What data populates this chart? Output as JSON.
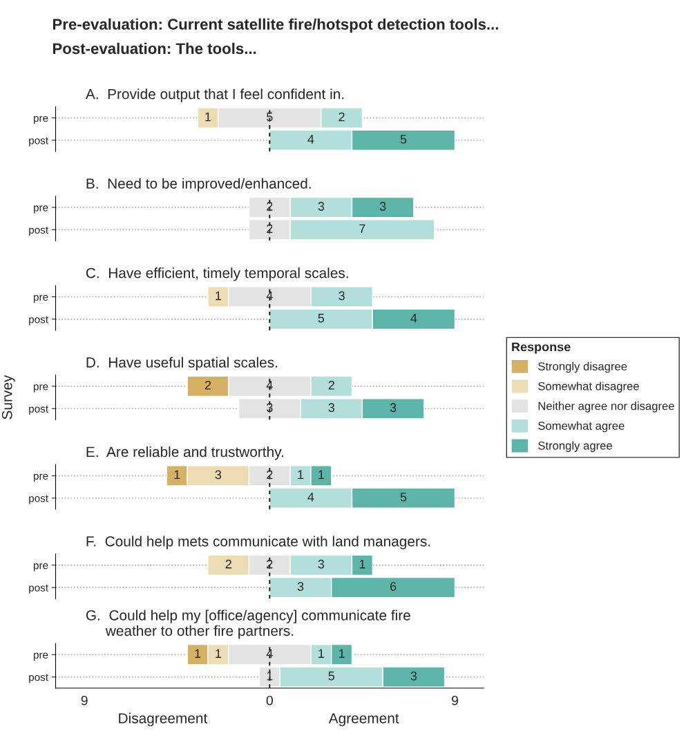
{
  "chart_data": [
    {
      "type": "bar",
      "orientation": "horizontal",
      "title": "Pre-evaluation: Current satellite fire/hotspot detection tools...\nPost-evaluation: The tools...",
      "subtitle": "A.  Provide output that I feel confident in.",
      "categories": [
        "pre",
        "post"
      ],
      "series": [
        {
          "color": "#ecdbb3",
          "values": [
            1,
            null
          ],
          "base": [
            -3.5,
            null
          ]
        },
        {
          "color": "#e3e3e3",
          "values": [
            5,
            null
          ],
          "base": [
            -2.5,
            null
          ]
        },
        {
          "color": "#b3dfdb",
          "values": [
            2,
            4
          ],
          "base": [
            2.5,
            0
          ]
        },
        {
          "color": "#5db5aa",
          "values": [
            null,
            5
          ],
          "base": [
            null,
            4
          ]
        }
      ],
      "xlim": [
        -10.4,
        10.4
      ],
      "tick_labels": "y",
      "grid": "y",
      "data_labels": true,
      "ref_lines": [
        {
          "axis": "x",
          "value": 0,
          "line_style": "dashed"
        }
      ]
    },
    {
      "type": "bar",
      "orientation": "horizontal",
      "subtitle": "B.  Need to be improved/enhanced.",
      "categories": [
        "pre",
        "post"
      ],
      "series": [
        {
          "color": "#e3e3e3",
          "values": [
            2,
            2
          ],
          "base": [
            -1,
            -1
          ]
        },
        {
          "color": "#b3dfdb",
          "values": [
            3,
            7
          ],
          "base": [
            1,
            1
          ]
        },
        {
          "color": "#5db5aa",
          "values": [
            3,
            null
          ],
          "base": [
            4,
            null
          ]
        }
      ],
      "xlim": [
        -10.4,
        10.4
      ],
      "tick_labels": "y",
      "grid": "y",
      "data_labels": true,
      "ref_lines": [
        {
          "axis": "x",
          "value": 0,
          "line_style": "dashed"
        }
      ]
    },
    {
      "type": "bar",
      "orientation": "horizontal",
      "subtitle": "C.  Have efficient, timely temporal scales.",
      "categories": [
        "pre",
        "post"
      ],
      "series": [
        {
          "color": "#ecdbb3",
          "values": [
            1,
            null
          ],
          "base": [
            -3,
            null
          ]
        },
        {
          "color": "#e3e3e3",
          "values": [
            4,
            null
          ],
          "base": [
            -2,
            null
          ]
        },
        {
          "color": "#b3dfdb",
          "values": [
            3,
            5
          ],
          "base": [
            2,
            0
          ]
        },
        {
          "color": "#5db5aa",
          "values": [
            null,
            4
          ],
          "base": [
            null,
            5
          ]
        }
      ],
      "xlim": [
        -10.4,
        10.4
      ],
      "tick_labels": "y",
      "grid": "y",
      "data_labels": true,
      "ref_lines": [
        {
          "axis": "x",
          "value": 0,
          "line_style": "dashed"
        }
      ]
    },
    {
      "type": "bar",
      "orientation": "horizontal",
      "subtitle": "D.  Have useful spatial scales.",
      "ylabel": "Survey",
      "legend_title": "Response",
      "categories": [
        "pre",
        "post"
      ],
      "series": [
        {
          "name": "Strongly disagree",
          "color": "#d6b163",
          "values": [
            2,
            null
          ],
          "base": [
            -4,
            null
          ]
        },
        {
          "name": "Somewhat disagree",
          "color": "#ecdbb3",
          "values": [
            null,
            null
          ],
          "base": [
            null,
            null
          ]
        },
        {
          "name": "Neither agree nor disagree",
          "color": "#e3e3e3",
          "values": [
            4,
            3
          ],
          "base": [
            -2,
            -1.5
          ]
        },
        {
          "name": "Somewhat agree",
          "color": "#b3dfdb",
          "values": [
            2,
            3
          ],
          "base": [
            2,
            1.5
          ]
        },
        {
          "name": "Strongly agree",
          "color": "#5db5aa",
          "values": [
            null,
            3
          ],
          "base": [
            null,
            4.5
          ]
        }
      ],
      "xlim": [
        -10.4,
        10.4
      ],
      "tick_labels": "y",
      "grid": "y",
      "data_labels": true,
      "legend": "right",
      "ref_lines": [
        {
          "axis": "x",
          "value": 0,
          "line_style": "dashed"
        }
      ]
    },
    {
      "type": "bar",
      "orientation": "horizontal",
      "subtitle": "E.  Are reliable and trustworthy.",
      "categories": [
        "pre",
        "post"
      ],
      "series": [
        {
          "color": "#d6b163",
          "values": [
            1,
            null
          ],
          "base": [
            -5,
            null
          ]
        },
        {
          "color": "#ecdbb3",
          "values": [
            3,
            null
          ],
          "base": [
            -4,
            null
          ]
        },
        {
          "color": "#e3e3e3",
          "values": [
            2,
            null
          ],
          "base": [
            -1,
            null
          ]
        },
        {
          "color": "#b3dfdb",
          "values": [
            1,
            4
          ],
          "base": [
            1,
            0
          ]
        },
        {
          "color": "#5db5aa",
          "values": [
            1,
            5
          ],
          "base": [
            2,
            4
          ]
        }
      ],
      "xlim": [
        -10.4,
        10.4
      ],
      "tick_labels": "y",
      "grid": "y",
      "data_labels": true,
      "ref_lines": [
        {
          "axis": "x",
          "value": 0,
          "line_style": "dashed"
        }
      ]
    },
    {
      "type": "bar",
      "orientation": "horizontal",
      "subtitle": "F.  Could help mets communicate with land managers.",
      "categories": [
        "pre",
        "post"
      ],
      "series": [
        {
          "color": "#ecdbb3",
          "values": [
            2,
            null
          ],
          "base": [
            -3,
            null
          ]
        },
        {
          "color": "#e3e3e3",
          "values": [
            2,
            null
          ],
          "base": [
            -1,
            null
          ]
        },
        {
          "color": "#b3dfdb",
          "values": [
            3,
            3
          ],
          "base": [
            1,
            0
          ]
        },
        {
          "color": "#5db5aa",
          "values": [
            1,
            6
          ],
          "base": [
            4,
            3
          ]
        }
      ],
      "xlim": [
        -10.4,
        10.4
      ],
      "tick_labels": "y",
      "grid": "y",
      "data_labels": true,
      "ref_lines": [
        {
          "axis": "x",
          "value": 0,
          "line_style": "dashed"
        }
      ]
    },
    {
      "type": "bar",
      "orientation": "horizontal",
      "subtitle": "G.  Could help my [office/agency] communicate fire\n     weather to other fire partners.",
      "categories": [
        "pre",
        "post"
      ],
      "series": [
        {
          "color": "#d6b163",
          "values": [
            1,
            null
          ],
          "base": [
            -4,
            null
          ]
        },
        {
          "color": "#ecdbb3",
          "values": [
            1,
            null
          ],
          "base": [
            -3,
            null
          ]
        },
        {
          "color": "#e3e3e3",
          "values": [
            4,
            1
          ],
          "base": [
            -2,
            -0.5
          ]
        },
        {
          "color": "#b3dfdb",
          "values": [
            1,
            5
          ],
          "base": [
            2,
            0.5
          ]
        },
        {
          "color": "#5db5aa",
          "values": [
            1,
            3
          ],
          "base": [
            3,
            5.5
          ]
        }
      ],
      "xlim": [
        -10.4,
        10.4
      ],
      "xticks": [
        {
          "value": -9,
          "label": "9"
        },
        0,
        9
      ],
      "annotations": [
        "Disagreement",
        "Agreement"
      ],
      "grid": "y",
      "data_labels": true,
      "ref_lines": [
        {
          "axis": "x",
          "value": 0,
          "line_style": "dashed"
        }
      ]
    }
  ]
}
